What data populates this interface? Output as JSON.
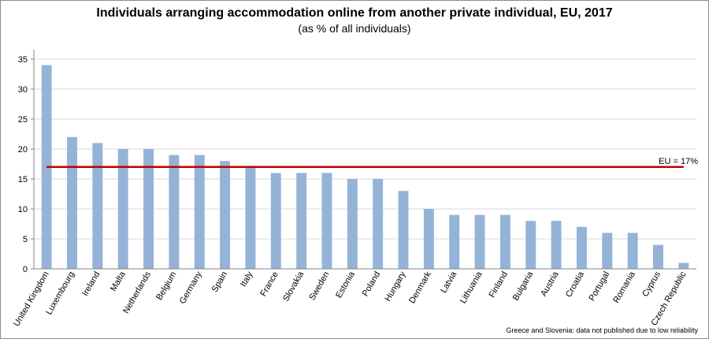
{
  "chart_data": {
    "type": "bar",
    "title": "Individuals arranging accommodation online from another private individual, EU, 2017",
    "subtitle": "(as % of all individuals)",
    "categories": [
      "United Kingdom",
      "Luxembourg",
      "Ireland",
      "Malta",
      "Netherlands",
      "Belgium",
      "Germany",
      "Spain",
      "Italy",
      "France",
      "Slovakia",
      "Sweden",
      "Estonia",
      "Poland",
      "Hungary",
      "Denmark",
      "Latvia",
      "Lithuania",
      "Finland",
      "Bulgaria",
      "Austria",
      "Croatia",
      "Portugal",
      "Romania",
      "Cyprus",
      "Czech Republic"
    ],
    "values": [
      34,
      22,
      21,
      20,
      20,
      19,
      19,
      18,
      17,
      16,
      16,
      16,
      15,
      15,
      13,
      10,
      9,
      9,
      9,
      8,
      8,
      7,
      6,
      6,
      4,
      1
    ],
    "ylim": [
      0,
      35
    ],
    "yticks": [
      "0",
      "5",
      "10",
      "15",
      "20",
      "25",
      "30",
      "35"
    ],
    "grid": true,
    "bar_color": "#95b3d7",
    "reference_line": {
      "value": 17,
      "label": "EU = 17%",
      "color": "#c00000"
    },
    "note": "Greece and Slovenia: data not published due to low reliability"
  }
}
